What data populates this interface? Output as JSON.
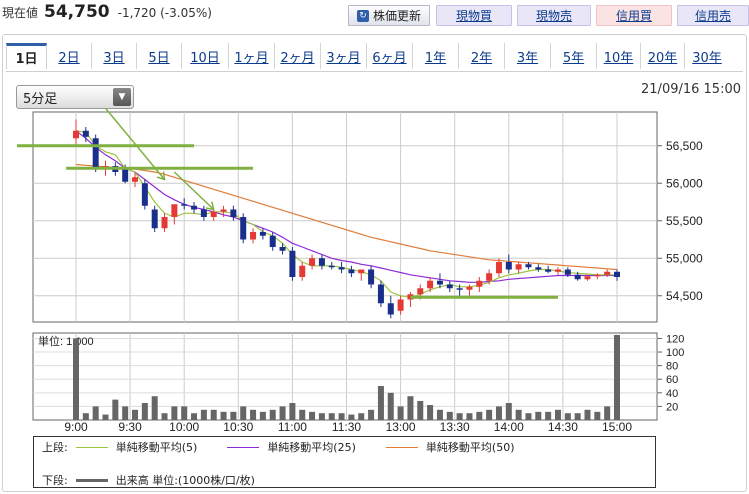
{
  "quote": {
    "label": "現在値",
    "price": "54,750",
    "change": "-1,720 (-3.05%)"
  },
  "buttons": {
    "refresh": "株価更新",
    "spot_buy": "現物買",
    "spot_sell": "現物売",
    "margin_buy": "信用買",
    "margin_sell": "信用売"
  },
  "tabs": [
    "1日",
    "2日",
    "3日",
    "5日",
    "10日",
    "1ヶ月",
    "2ヶ月",
    "3ヶ月",
    "6ヶ月",
    "1年",
    "2年",
    "3年",
    "5年",
    "10年",
    "20年",
    "30年"
  ],
  "interval": {
    "selected": "5分足"
  },
  "datetime": "21/09/16 15:00",
  "legend": {
    "upper_label": "上段:",
    "lower_label": "下段:",
    "sma5": "単純移動平均(5)",
    "sma25": "単純移動平均(25)",
    "sma50": "単純移動平均(50)",
    "volume": "出来高 単位:(1000株/口/枚)"
  },
  "colors": {
    "up": "#e53935",
    "down": "#1a2f8c",
    "sma5": "#9bc53d",
    "sma25": "#8e2bd6",
    "sma50": "#e07b39",
    "volume": "#666666",
    "annot": "#7fb040"
  },
  "chart_data": {
    "type": "candlestick",
    "x_ticks": [
      "9:00",
      "9:30",
      "10:00",
      "10:30",
      "11:00",
      "11:30",
      "13:00",
      "13:30",
      "14:00",
      "14:30",
      "15:00"
    ],
    "price_axis": {
      "ticks": [
        54500,
        55000,
        55500,
        56000,
        56500
      ],
      "tick_labels": [
        "54,500",
        "55,000",
        "55,500",
        "56,000",
        "56,500"
      ],
      "ylim": [
        54150,
        56950
      ]
    },
    "volume_axis": {
      "unit_label": "単位: 1,000",
      "ticks": [
        20,
        40,
        60,
        80,
        100,
        120
      ],
      "ylim": [
        0,
        128
      ]
    },
    "candles": [
      {
        "o": 56600,
        "h": 56850,
        "l": 56500,
        "c": 56700
      },
      {
        "o": 56700,
        "h": 56750,
        "l": 56550,
        "c": 56620
      },
      {
        "o": 56600,
        "h": 56650,
        "l": 56150,
        "c": 56200
      },
      {
        "o": 56200,
        "h": 56300,
        "l": 56100,
        "c": 56230
      },
      {
        "o": 56230,
        "h": 56280,
        "l": 56100,
        "c": 56150
      },
      {
        "o": 56200,
        "h": 56250,
        "l": 56000,
        "c": 56020
      },
      {
        "o": 56020,
        "h": 56150,
        "l": 55950,
        "c": 56080
      },
      {
        "o": 56000,
        "h": 56050,
        "l": 55650,
        "c": 55700
      },
      {
        "o": 55650,
        "h": 55700,
        "l": 55350,
        "c": 55400
      },
      {
        "o": 55400,
        "h": 55600,
        "l": 55350,
        "c": 55550
      },
      {
        "o": 55550,
        "h": 55700,
        "l": 55450,
        "c": 55720
      },
      {
        "o": 55720,
        "h": 55800,
        "l": 55650,
        "c": 55700
      },
      {
        "o": 55700,
        "h": 55750,
        "l": 55600,
        "c": 55650
      },
      {
        "o": 55650,
        "h": 55700,
        "l": 55500,
        "c": 55550
      },
      {
        "o": 55550,
        "h": 55650,
        "l": 55500,
        "c": 55620
      },
      {
        "o": 55620,
        "h": 55700,
        "l": 55550,
        "c": 55650
      },
      {
        "o": 55650,
        "h": 55700,
        "l": 55500,
        "c": 55550
      },
      {
        "o": 55550,
        "h": 55600,
        "l": 55200,
        "c": 55250
      },
      {
        "o": 55250,
        "h": 55400,
        "l": 55200,
        "c": 55350
      },
      {
        "o": 55350,
        "h": 55400,
        "l": 55250,
        "c": 55300
      },
      {
        "o": 55300,
        "h": 55350,
        "l": 55100,
        "c": 55150
      },
      {
        "o": 55150,
        "h": 55200,
        "l": 55050,
        "c": 55100
      },
      {
        "o": 55100,
        "h": 55150,
        "l": 54700,
        "c": 54750
      },
      {
        "o": 54750,
        "h": 54950,
        "l": 54700,
        "c": 54900
      },
      {
        "o": 54900,
        "h": 55050,
        "l": 54850,
        "c": 55000
      },
      {
        "o": 55000,
        "h": 55050,
        "l": 54850,
        "c": 54900
      },
      {
        "o": 54900,
        "h": 54950,
        "l": 54850,
        "c": 54880
      },
      {
        "o": 54880,
        "h": 54950,
        "l": 54800,
        "c": 54850
      },
      {
        "o": 54850,
        "h": 54900,
        "l": 54750,
        "c": 54800
      },
      {
        "o": 54800,
        "h": 54850,
        "l": 54700,
        "c": 54850
      },
      {
        "o": 54850,
        "h": 54900,
        "l": 54600,
        "c": 54650
      },
      {
        "o": 54650,
        "h": 54700,
        "l": 54350,
        "c": 54400
      },
      {
        "o": 54400,
        "h": 54500,
        "l": 54200,
        "c": 54250
      },
      {
        "o": 54300,
        "h": 54500,
        "l": 54250,
        "c": 54450
      },
      {
        "o": 54450,
        "h": 54550,
        "l": 54350,
        "c": 54520
      },
      {
        "o": 54520,
        "h": 54650,
        "l": 54450,
        "c": 54600
      },
      {
        "o": 54600,
        "h": 54750,
        "l": 54550,
        "c": 54700
      },
      {
        "o": 54700,
        "h": 54800,
        "l": 54600,
        "c": 54650
      },
      {
        "o": 54650,
        "h": 54700,
        "l": 54550,
        "c": 54600
      },
      {
        "o": 54600,
        "h": 54650,
        "l": 54500,
        "c": 54580
      },
      {
        "o": 54580,
        "h": 54650,
        "l": 54500,
        "c": 54620
      },
      {
        "o": 54620,
        "h": 54750,
        "l": 54550,
        "c": 54700
      },
      {
        "o": 54700,
        "h": 54850,
        "l": 54650,
        "c": 54800
      },
      {
        "o": 54800,
        "h": 55000,
        "l": 54750,
        "c": 54950
      },
      {
        "o": 54950,
        "h": 55050,
        "l": 54800,
        "c": 54850
      },
      {
        "o": 54850,
        "h": 54950,
        "l": 54800,
        "c": 54920
      },
      {
        "o": 54920,
        "h": 54950,
        "l": 54850,
        "c": 54880
      },
      {
        "o": 54880,
        "h": 54920,
        "l": 54820,
        "c": 54850
      },
      {
        "o": 54850,
        "h": 54900,
        "l": 54800,
        "c": 54820
      },
      {
        "o": 54820,
        "h": 54880,
        "l": 54780,
        "c": 54850
      },
      {
        "o": 54850,
        "h": 54880,
        "l": 54750,
        "c": 54780
      },
      {
        "o": 54780,
        "h": 54820,
        "l": 54700,
        "c": 54720
      },
      {
        "o": 54720,
        "h": 54780,
        "l": 54700,
        "c": 54760
      },
      {
        "o": 54760,
        "h": 54800,
        "l": 54720,
        "c": 54780
      },
      {
        "o": 54780,
        "h": 54850,
        "l": 54750,
        "c": 54820
      },
      {
        "o": 54820,
        "h": 54850,
        "l": 54700,
        "c": 54750
      }
    ],
    "volume": [
      120,
      10,
      20,
      8,
      30,
      20,
      15,
      25,
      35,
      10,
      20,
      20,
      10,
      15,
      15,
      12,
      12,
      20,
      15,
      12,
      15,
      20,
      25,
      15,
      12,
      10,
      10,
      10,
      8,
      10,
      15,
      50,
      40,
      20,
      35,
      28,
      22,
      15,
      12,
      10,
      10,
      12,
      15,
      20,
      25,
      15,
      10,
      12,
      12,
      15,
      10,
      10,
      15,
      12,
      20,
      125
    ],
    "sma5": [
      56700,
      56680,
      56500,
      56420,
      56380,
      56200,
      56150,
      55950,
      55750,
      55600,
      55550,
      55600,
      55600,
      55580,
      55620,
      55620,
      55600,
      55500,
      55450,
      55350,
      55300,
      55200,
      55050,
      54950,
      54900,
      54900,
      54900,
      54880,
      54850,
      54820,
      54780,
      54700,
      54550,
      54500,
      54480,
      54520,
      54580,
      54620,
      54650,
      54620,
      54620,
      54640,
      54680,
      54740,
      54780,
      54800,
      54830,
      54850,
      54850,
      54830,
      54810,
      54800,
      54790,
      54780,
      54780,
      54780
    ],
    "sma25": [
      56700,
      56600,
      56480,
      56380,
      56300,
      56200,
      56150,
      56050,
      55950,
      55850,
      55780,
      55720,
      55680,
      55650,
      55620,
      55580,
      55550,
      55500,
      55450,
      55400,
      55350,
      55280,
      55200,
      55150,
      55100,
      55050,
      55000,
      54970,
      54950,
      54920,
      54900,
      54870,
      54840,
      54810,
      54780,
      54760,
      54740,
      54720,
      54700,
      54690,
      54680,
      54680,
      54690,
      54700,
      54720,
      54730,
      54740,
      54750,
      54760,
      54770,
      54770,
      54770,
      54770,
      54770,
      54770,
      54770
    ],
    "sma50": [
      56250,
      56240,
      56230,
      56220,
      56210,
      56200,
      56190,
      56170,
      56150,
      56120,
      56080,
      56040,
      56000,
      55960,
      55920,
      55880,
      55840,
      55800,
      55760,
      55720,
      55680,
      55640,
      55600,
      55560,
      55520,
      55480,
      55440,
      55400,
      55360,
      55320,
      55280,
      55250,
      55220,
      55190,
      55160,
      55130,
      55100,
      55080,
      55060,
      55040,
      55020,
      55000,
      54980,
      54970,
      54960,
      54950,
      54940,
      54930,
      54920,
      54910,
      54900,
      54890,
      54880,
      54870,
      54860,
      54850
    ],
    "annotations": [
      {
        "type": "hline",
        "price": 56500,
        "i_start": -6,
        "i_end": 12
      },
      {
        "type": "hline",
        "price": 56200,
        "i_start": -1,
        "i_end": 18
      },
      {
        "type": "hline",
        "price": 54480,
        "i_start": 34,
        "i_end": 49
      },
      {
        "type": "arrow",
        "from": [
          3,
          57000
        ],
        "to": [
          9,
          56050
        ]
      },
      {
        "type": "arrow",
        "from": [
          10,
          56150
        ],
        "to": [
          14,
          55650
        ]
      }
    ]
  }
}
